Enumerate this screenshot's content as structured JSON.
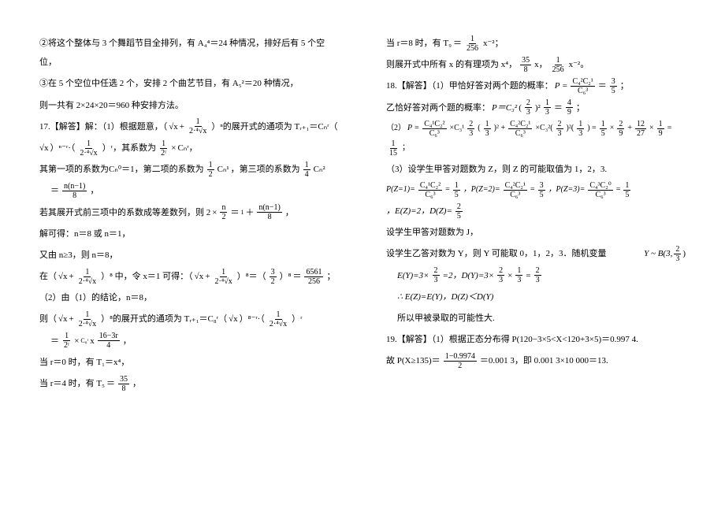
{
  "left": {
    "l1": "②将这个整体与 3 个舞蹈节目全排列，有 A₄⁴＝24 种情况，排好后有 5 个空位，",
    "l2": "③在 5 个空位中任选 2 个，安排 2 个曲艺节目，有 A₅²＝20 种情况，",
    "l3": "则一共有 2×24×20＝960 种安排方法。",
    "l4a": "17.【解答】解：（1）根据题意，（",
    "l4b": "）ⁿ的展开式的通项为 Tᵣ₊₁＝Cₙʳ（",
    "sqx": "√x",
    "plus": " + ",
    "f1n": "1",
    "f1d": "2·⁴√x",
    "l5a": "）ⁿ⁻ʳ·（",
    "l5b": "）ʳ，其系数为",
    "f2n": "1",
    "f2d": "2ʳ",
    "l5c": "Cₙʳ，",
    "x": "×",
    "l6a": "其第一项的系数为Cₙ⁰＝1，第二项的系数为",
    "f3n": "1",
    "f3d": "2",
    "l6b": "Cₙ¹",
    "l6c": "，第三项的系数为",
    "f4n": "1",
    "f4d": "4",
    "l6d": "Cₙ²",
    "l7a": "＝",
    "f5n": "n(n−1)",
    "f5d": "8",
    "l7b": "，",
    "l8a": "若其展开式前三项中的系数成等差数列，则 2",
    "f6n": "n",
    "f6d": "2",
    "l8b": "＝",
    "f6b": "1",
    "l8c": "＋",
    "f7n": "n(n−1)",
    "f7d": "8",
    "l8d": "，",
    "l9": "解可得：n＝8 或 n＝1，",
    "l10": "又由 n≥3，则 n＝8，",
    "l11a": "在（",
    "l11b": "）⁸ 中，令 x＝1 可得：（",
    "l11c": "）⁸＝（",
    "f8n": "3",
    "f8d": "2",
    "l11d": "）⁸",
    "l11e": "＝",
    "f9n": "6561",
    "f9d": "256",
    "l11f": "；",
    "l12": "（2）由（1）的结论，n＝8，",
    "l13a": "则（",
    "l13b": "）⁸的展开式的通项为 Tᵣ₊₁＝C₈ʳ（",
    "l13c": "）⁸⁻ʳ·（",
    "l13d": "）ʳ",
    "l14a": "＝",
    "f10n": "1",
    "f10d": "2ʳ",
    "l14b": "C₈ʳ",
    "l14c": "x",
    "f11n": "16−3r",
    "f11d": "4",
    "l14d": "，",
    "l15": "当 r＝0 时，有 T₁＝x⁴，",
    "l16a": "当 r＝4 时，有 T₅",
    "l16b": "＝",
    "f12n": "35",
    "f12d": "8",
    "l16c": "，"
  },
  "right": {
    "r1a": "当 r＝8 时，有 T₉",
    "r1b": "＝",
    "f13n": "1",
    "f13d": "256",
    "r1c": "x⁻²；",
    "r2a": "则展开式中所有 x 的有理项为 x⁴，",
    "f14n": "35",
    "f14d": "8",
    "r2b": "x，",
    "f15n": "1",
    "f15d": "256",
    "r2c": "x⁻²。",
    "r3a": "18.【解答】（1）甲恰好答对两个题的概率：",
    "pexpr": "P =",
    "f16n": "C₄²C₂¹",
    "f16d": "C₆³",
    "r3b": "＝",
    "f17n": "3",
    "f17d": "5",
    "r3c": "；",
    "r4a": "乙恰好答对两个题的概率：",
    "r4b": "P＝C₃²",
    "f18n": "2",
    "f18d": "3",
    "r4c": "(",
    "r4d": ")²",
    "f19n": "1",
    "f19d": "3",
    "r4e": "＝",
    "f20n": "4",
    "f20d": "9",
    "r4f": "；",
    "r5a": "P =",
    "f21n": "C₄¹C₂²",
    "f21d": "C₆³",
    "r5b": "×C₃¹",
    "f22n": "2",
    "f22d": "3",
    "r5c": "(",
    "f23n": "1",
    "f23d": "3",
    "r5d": ")² +",
    "f24n": "C₄²C₂¹",
    "f24d": "C₆³",
    "r5e": "×C₃²(",
    "f25n": "2",
    "f25d": "3",
    "r5f": ")²(",
    "f26n": "1",
    "f26d": "3",
    "r5g": ") =",
    "f27n": "1",
    "f27d": "5",
    "r5h": "×",
    "f28n": "2",
    "f28d": "9",
    "r5i": "+",
    "f29n": "12",
    "f29d": "27",
    "r5j": "×",
    "f30n": "1",
    "f30d": "9",
    "r5k": "=",
    "f31n": "1",
    "f31d": "15",
    "r5l": "；",
    "r5pre": "（2）",
    "r6": "（3）设学生甲答对题数为 Z，则 Z 的可能取值为 1，2，3.",
    "r7a": "P(Z=1)=",
    "f32n": "C₄¹C₂²",
    "f32d": "C₆³",
    "r7b": "=",
    "f33n": "1",
    "f33d": "5",
    "r7c": "，P(Z=2)=",
    "f34n": "C₄²C₂¹",
    "f34d": "C₆³",
    "r7d": "=",
    "f35n": "3",
    "f35d": "5",
    "r7e": "，P(Z=3)=",
    "f36n": "C₄³C₂⁰",
    "f36d": "C₆³",
    "r7f": "=",
    "f37n": "1",
    "f37d": "5",
    "r8a": "，E(Z)=2，D(Z)=",
    "f38n": "2",
    "f38d": "5",
    "r9": "设学生甲答对题数为 J，",
    "r10a": "设学生乙答对数为 Y，则 Y 可能取 0，1，2，3．随机变量",
    "r10b": "Y ~ B(3,",
    "f39n": "2",
    "f39d": "3",
    "r10c": ")",
    "r11a": "E(Y)=3×",
    "f40n": "2",
    "f40d": "3",
    "r11b": "=2，D(Y)=3×",
    "f41n": "2",
    "f41d": "3",
    "r11c": "×",
    "f42n": "1",
    "f42d": "3",
    "r11d": "=",
    "f43n": "2",
    "f43d": "3",
    "r12": "∴ E(Z)=E(Y)，D(Z)＜D(Y)",
    "r13": "所以甲被录取的可能性大.",
    "r14": "19.【解答】（1）根据正态分布得 P(120−3×5<X<120+3×5)＝0.997 4.",
    "r15a": "故 P(X≥135)＝",
    "f44n": "1−0.9974",
    "f44d": "2",
    "r15b": "＝0.001 3，即 0.001 3×10 000＝13."
  }
}
